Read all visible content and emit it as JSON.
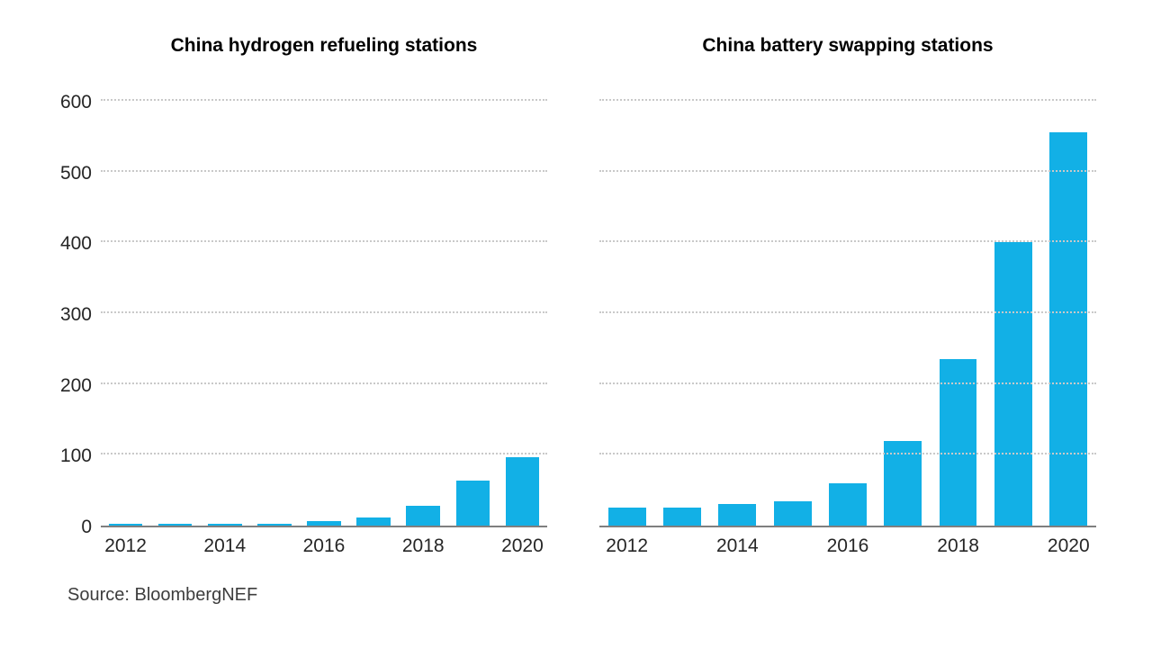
{
  "colors": {
    "bar": "#12b0e6",
    "grid": "#c9c9c9",
    "axis": "#7f7f7f",
    "text": "#262626"
  },
  "source": {
    "label": "Source: BloombergNEF"
  },
  "chart_data": [
    {
      "type": "bar",
      "title": "China hydrogen refueling stations",
      "categories": [
        "2012",
        "2013",
        "2014",
        "2015",
        "2016",
        "2017",
        "2018",
        "2019",
        "2020"
      ],
      "values": [
        2,
        2,
        2,
        3,
        6,
        12,
        28,
        64,
        96
      ],
      "xlabel": "",
      "ylabel": "",
      "ylim": [
        0,
        600
      ],
      "yticks": [
        0,
        100,
        200,
        300,
        400,
        500,
        600
      ],
      "x_tick_labels": [
        "2012",
        "",
        "2014",
        "",
        "2016",
        "",
        "2018",
        "",
        "2020"
      ],
      "grid": "dotted-horizontal",
      "legend": "none"
    },
    {
      "type": "bar",
      "title": "China battery swapping stations",
      "categories": [
        "2012",
        "2013",
        "2014",
        "2015",
        "2016",
        "2017",
        "2018",
        "2019",
        "2020"
      ],
      "values": [
        25,
        26,
        30,
        34,
        60,
        120,
        235,
        400,
        555
      ],
      "xlabel": "",
      "ylabel": "",
      "ylim": [
        0,
        600
      ],
      "yticks": [
        0,
        100,
        200,
        300,
        400,
        500,
        600
      ],
      "x_tick_labels": [
        "2012",
        "",
        "2014",
        "",
        "2016",
        "",
        "2018",
        "",
        "2020"
      ],
      "grid": "dotted-horizontal",
      "legend": "none"
    }
  ]
}
